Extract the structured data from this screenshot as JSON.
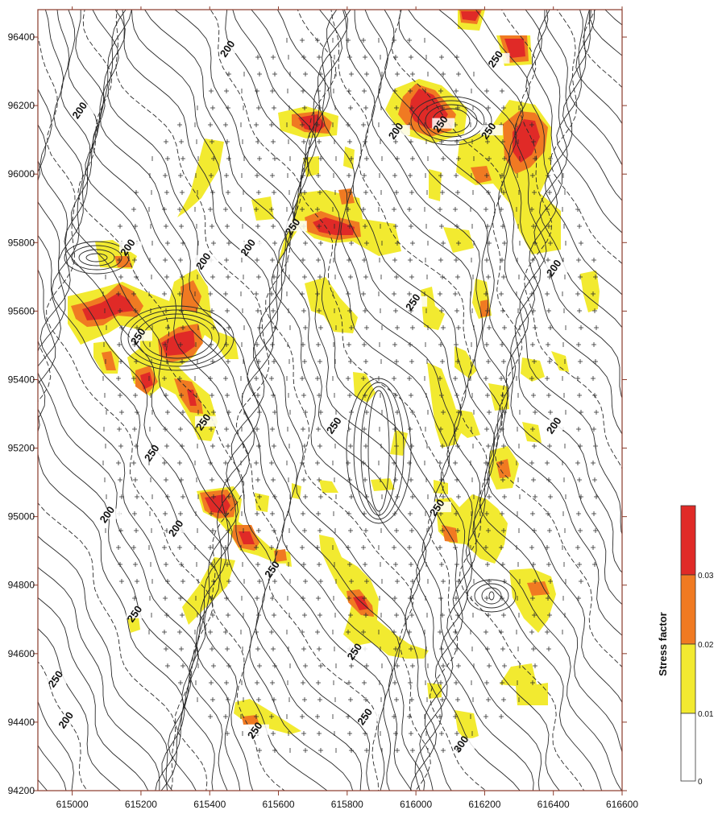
{
  "map": {
    "x_axis": {
      "ticks": [
        615000,
        615200,
        615400,
        615600,
        615800,
        616000,
        616200,
        616400,
        616600
      ],
      "range": [
        614900,
        616600
      ]
    },
    "y_axis": {
      "ticks": [
        94200,
        94400,
        94600,
        94800,
        95000,
        95200,
        95400,
        95600,
        95800,
        96000,
        96200,
        96400
      ],
      "range": [
        94200,
        96480
      ]
    },
    "contour_labels": [
      {
        "text": "200",
        "x": 615030,
        "y": 96180
      },
      {
        "text": "200",
        "x": 615460,
        "y": 96360
      },
      {
        "text": "200",
        "x": 615950,
        "y": 96120
      },
      {
        "text": "200",
        "x": 615170,
        "y": 95780
      },
      {
        "text": "200",
        "x": 615390,
        "y": 95740
      },
      {
        "text": "200",
        "x": 615520,
        "y": 95780
      },
      {
        "text": "200",
        "x": 616410,
        "y": 95720
      },
      {
        "text": "200",
        "x": 616410,
        "y": 95260
      },
      {
        "text": "200",
        "x": 615110,
        "y": 95000
      },
      {
        "text": "200",
        "x": 615310,
        "y": 94960
      },
      {
        "text": "200",
        "x": 614990,
        "y": 94400
      },
      {
        "text": "250",
        "x": 616240,
        "y": 96330
      },
      {
        "text": "250",
        "x": 616080,
        "y": 96140
      },
      {
        "text": "250",
        "x": 616220,
        "y": 96120
      },
      {
        "text": "250",
        "x": 615650,
        "y": 95840
      },
      {
        "text": "250",
        "x": 616000,
        "y": 95620
      },
      {
        "text": "250",
        "x": 615200,
        "y": 95520
      },
      {
        "text": "250",
        "x": 615390,
        "y": 95270
      },
      {
        "text": "250",
        "x": 615770,
        "y": 95260
      },
      {
        "text": "250",
        "x": 615240,
        "y": 95180
      },
      {
        "text": "250",
        "x": 616070,
        "y": 95020
      },
      {
        "text": "250",
        "x": 615590,
        "y": 94840
      },
      {
        "text": "250",
        "x": 615190,
        "y": 94710
      },
      {
        "text": "250",
        "x": 614960,
        "y": 94520
      },
      {
        "text": "250",
        "x": 615830,
        "y": 94600
      },
      {
        "text": "250",
        "x": 615860,
        "y": 94410
      },
      {
        "text": "250",
        "x": 615540,
        "y": 94370
      },
      {
        "text": "300",
        "x": 616140,
        "y": 94330
      }
    ]
  },
  "legend": {
    "title": "Stress factor",
    "labels": [
      "0",
      "0.01",
      "0.02",
      "0.03"
    ],
    "colors": [
      "#ffffff",
      "#f2ea30",
      "#f07a22",
      "#e02a27"
    ]
  },
  "colors": {
    "low": "#f2ea30",
    "mid": "#f07a22",
    "high": "#e02a27",
    "contour": "#2a2a2a"
  }
}
